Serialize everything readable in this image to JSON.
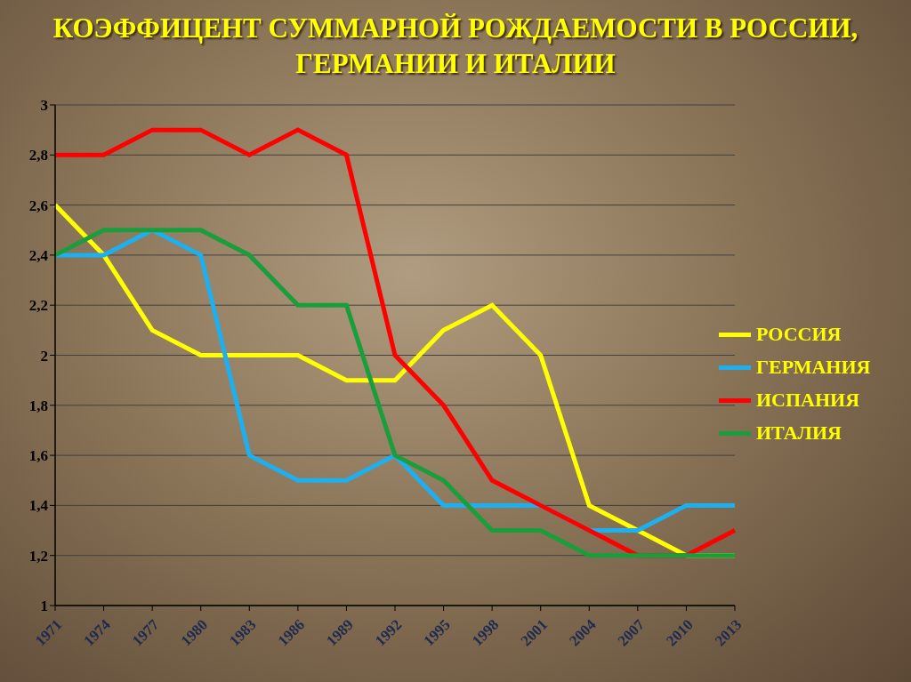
{
  "chart_data": {
    "type": "line",
    "title": "КОЭФФИЦЕНТ СУММАРНОЙ РОЖДАЕМОСТИ В РОССИИ, ГЕРМАНИИ И ИТАЛИИ",
    "categories": [
      "1971",
      "1974",
      "1977",
      "1980",
      "1983",
      "1986",
      "1989",
      "1992",
      "1995",
      "1998",
      "2001",
      "2004",
      "2007",
      "2010",
      "2013"
    ],
    "series": [
      {
        "name": "РОССИЯ",
        "color": "#ffff00",
        "values": [
          2.6,
          2.4,
          2.1,
          2.0,
          2.0,
          2.0,
          1.9,
          1.9,
          2.1,
          2.2,
          2.0,
          1.4,
          1.3,
          1.2,
          1.2
        ]
      },
      {
        "name": "ГЕРМАНИЯ",
        "color": "#1cb0f0",
        "values": [
          2.4,
          2.4,
          2.5,
          2.4,
          1.6,
          1.5,
          1.5,
          1.6,
          1.4,
          1.4,
          1.4,
          1.3,
          1.3,
          1.4,
          1.4
        ]
      },
      {
        "name": "ИСПАНИЯ",
        "color": "#ff0000",
        "values": [
          2.8,
          2.8,
          2.9,
          2.9,
          2.8,
          2.9,
          2.8,
          2.0,
          1.8,
          1.5,
          1.4,
          1.3,
          1.2,
          1.2,
          1.3
        ]
      },
      {
        "name": "ИТАЛИЯ",
        "color": "#1a9e3c",
        "values": [
          2.4,
          2.5,
          2.5,
          2.5,
          2.4,
          2.2,
          2.2,
          1.6,
          1.5,
          1.3,
          1.3,
          1.2,
          1.2,
          1.2,
          1.2
        ]
      }
    ],
    "ylim": [
      1,
      3
    ],
    "yticks": [
      1,
      {
        "value": 1.2,
        "label": "1,2"
      },
      {
        "value": 1.4,
        "label": "1,4"
      },
      {
        "value": 1.6,
        "label": "1,6"
      },
      {
        "value": 1.8,
        "label": "1,8"
      },
      2,
      {
        "value": 2.2,
        "label": "2,2"
      },
      {
        "value": 2.4,
        "label": "2,4"
      },
      {
        "value": 2.6,
        "label": "2,6"
      },
      {
        "value": 2.8,
        "label": "2,8"
      },
      3
    ],
    "grid": true,
    "legend": "right"
  }
}
